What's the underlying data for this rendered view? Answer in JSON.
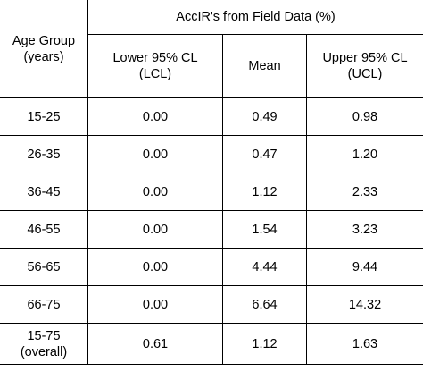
{
  "table": {
    "group_header": "AccIR's from Field Data (%)",
    "age_header": [
      "Age Group",
      "(years)"
    ],
    "columns": [
      [
        "Lower 95% CL",
        "(LCL)"
      ],
      [
        "Mean",
        ""
      ],
      [
        "Upper 95% CL",
        "(UCL)"
      ]
    ],
    "rows": [
      {
        "age": [
          "15-25",
          ""
        ],
        "lcl": "0.00",
        "mean": "0.49",
        "ucl": "0.98"
      },
      {
        "age": [
          "26-35",
          ""
        ],
        "lcl": "0.00",
        "mean": "0.47",
        "ucl": "1.20"
      },
      {
        "age": [
          "36-45",
          ""
        ],
        "lcl": "0.00",
        "mean": "1.12",
        "ucl": "2.33"
      },
      {
        "age": [
          "46-55",
          ""
        ],
        "lcl": "0.00",
        "mean": "1.54",
        "ucl": "3.23"
      },
      {
        "age": [
          "56-65",
          ""
        ],
        "lcl": "0.00",
        "mean": "4.44",
        "ucl": "9.44"
      },
      {
        "age": [
          "66-75",
          ""
        ],
        "lcl": "0.00",
        "mean": "6.64",
        "ucl": "14.32"
      },
      {
        "age": [
          "15-75",
          "(overall)"
        ],
        "lcl": "0.61",
        "mean": "1.12",
        "ucl": "1.63"
      }
    ]
  }
}
